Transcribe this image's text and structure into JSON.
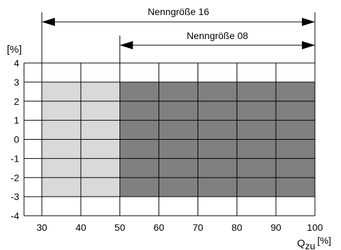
{
  "chart_data": {
    "type": "heatmap",
    "title": "",
    "ylabel": "[%]",
    "xlabel_main": "Q",
    "xlabel_sub": "zu",
    "xlabel_unit": "[%]",
    "xlim": [
      30,
      100
    ],
    "ylim": [
      -4,
      4
    ],
    "x_ticks": [
      30,
      40,
      50,
      60,
      70,
      80,
      90,
      100
    ],
    "y_ticks": [
      4,
      3,
      2,
      1,
      0,
      -1,
      -2,
      -3,
      -4
    ],
    "grid": true,
    "regions": [
      {
        "x": [
          30,
          50
        ],
        "y": [
          -3,
          3
        ],
        "color": "#d9d9d9"
      },
      {
        "x": [
          50,
          100
        ],
        "y": [
          -3,
          3
        ],
        "color": "#808080"
      }
    ],
    "ranges": [
      {
        "label": "Nenngröße 16",
        "x": [
          30,
          100
        ]
      },
      {
        "label": "Nenngröße 08",
        "x": [
          50,
          100
        ]
      }
    ]
  }
}
